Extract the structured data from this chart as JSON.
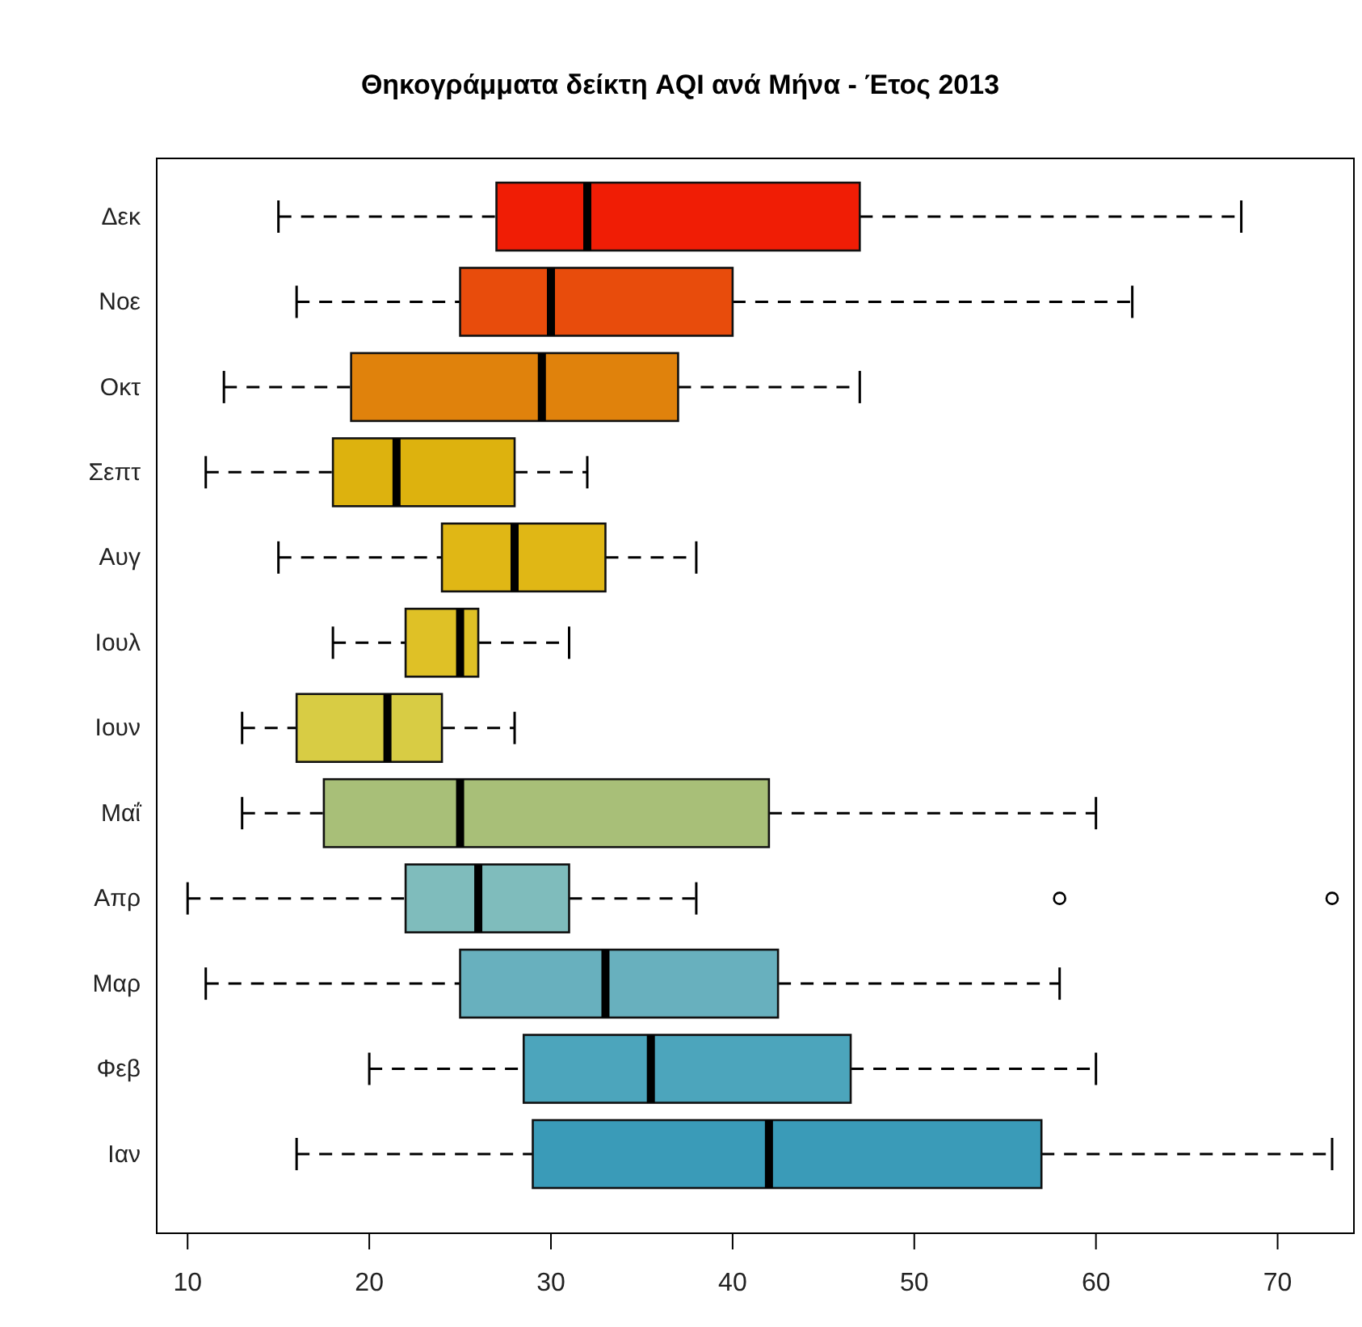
{
  "chart_data": {
    "type": "box",
    "title": "Θηκογράμματα δείκτη AQI ανά Μήνα - Έτος 2013",
    "orientation": "horizontal",
    "categories": [
      "Δεκ",
      "Νοε",
      "Οκτ",
      "Σεπτ",
      "Αυγ",
      "Ιουλ",
      "Ιουν",
      "Μαΐ",
      "Απρ",
      "Μαρ",
      "Φεβ",
      "Ιαν"
    ],
    "colors": [
      "#f01d05",
      "#e84c0c",
      "#e0820c",
      "#ddb20e",
      "#e0b715",
      "#dfc126",
      "#d8cc44",
      "#a8bf78",
      "#7fbcbc",
      "#68b0be",
      "#4ca5bc",
      "#3a9bb8"
    ],
    "boxes": [
      {
        "low": 15,
        "q1": 27,
        "median": 32,
        "q3": 47,
        "high": 68
      },
      {
        "low": 16,
        "q1": 25,
        "median": 30,
        "q3": 40,
        "high": 62
      },
      {
        "low": 12,
        "q1": 19,
        "median": 29.5,
        "q3": 37,
        "high": 47
      },
      {
        "low": 11,
        "q1": 18,
        "median": 21.5,
        "q3": 28,
        "high": 32
      },
      {
        "low": 15,
        "q1": 24,
        "median": 28,
        "q3": 33,
        "high": 38
      },
      {
        "low": 18,
        "q1": 22,
        "median": 25,
        "q3": 26,
        "high": 31
      },
      {
        "low": 13,
        "q1": 16,
        "median": 21,
        "q3": 24,
        "high": 28
      },
      {
        "low": 13,
        "q1": 17.5,
        "median": 25,
        "q3": 42,
        "high": 60
      },
      {
        "low": 10,
        "q1": 22,
        "median": 26,
        "q3": 31,
        "high": 38,
        "outliers": [
          58,
          73
        ]
      },
      {
        "low": 11,
        "q1": 25,
        "median": 33,
        "q3": 42.5,
        "high": 58
      },
      {
        "low": 20,
        "q1": 28.5,
        "median": 35.5,
        "q3": 46.5,
        "high": 60
      },
      {
        "low": 16,
        "q1": 29,
        "median": 42,
        "q3": 57,
        "high": 73
      }
    ],
    "xlim": [
      8.3,
      74.2
    ],
    "xticks": [
      10,
      20,
      30,
      40,
      50,
      60,
      70
    ]
  }
}
